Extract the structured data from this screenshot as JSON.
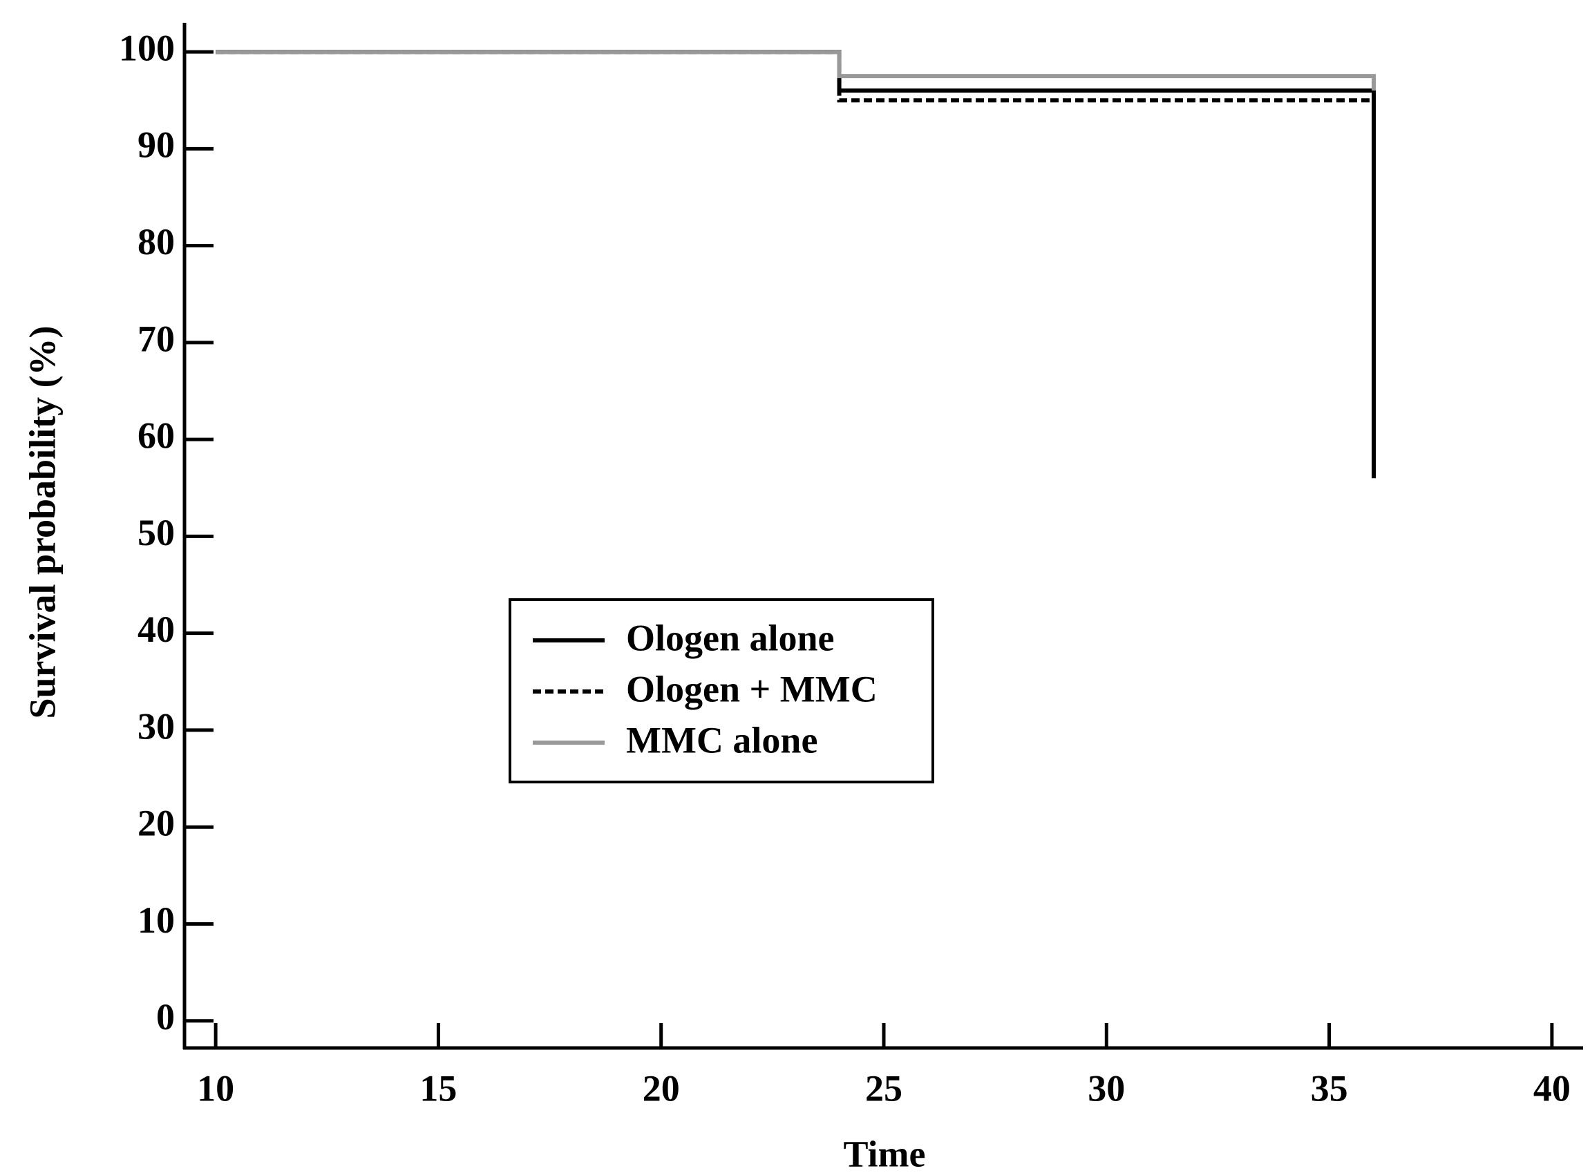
{
  "chart_data": {
    "type": "line",
    "x_label": "Time",
    "y_label": "Survival probability (%)",
    "x": [
      10,
      24,
      24,
      36,
      36
    ],
    "series": [
      {
        "name": "Ologen alone",
        "color": "#000000",
        "dash": "solid",
        "values": [
          100,
          100,
          96,
          96,
          56
        ]
      },
      {
        "name": "Ologen + MMC",
        "color": "#000000",
        "dash": "dashed",
        "values": [
          100,
          100,
          95,
          95,
          null
        ]
      },
      {
        "name": "MMC alone",
        "color": "#999999",
        "dash": "solid",
        "values": [
          100,
          100,
          97.5,
          97.5,
          96
        ]
      }
    ],
    "xlim": [
      9.3,
      40.7
    ],
    "ylim": [
      -2.8,
      103
    ],
    "xticks": [
      10,
      15,
      20,
      25,
      30,
      35,
      40
    ],
    "yticks": [
      0,
      10,
      20,
      30,
      40,
      50,
      60,
      70,
      80,
      90,
      100
    ],
    "grid": false
  }
}
